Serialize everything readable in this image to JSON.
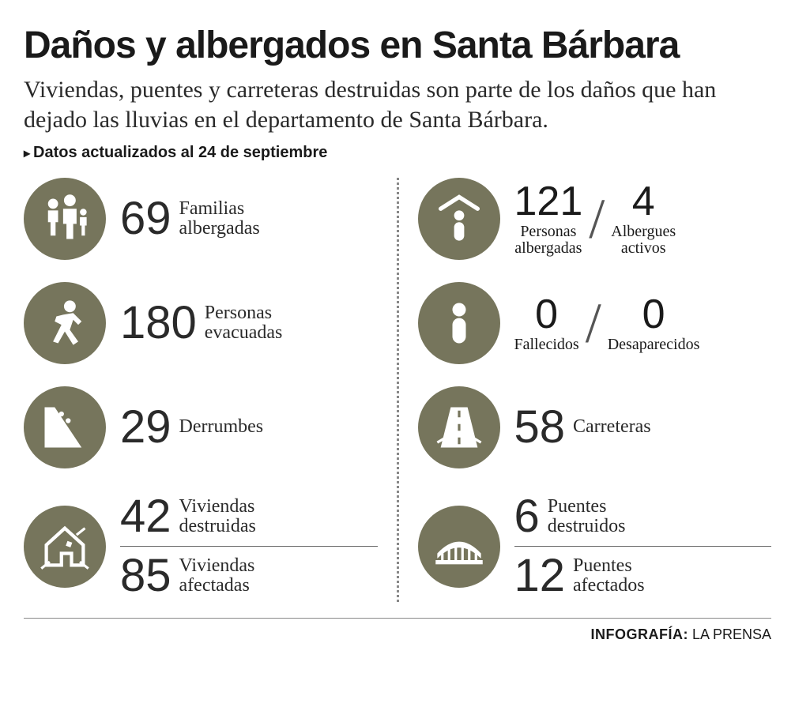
{
  "header": {
    "title": "Daños y albergados en Santa Bárbara",
    "subtitle": "Viviendas, puentes y carreteras destruidas son parte de los daños que han dejado las lluvias en el departamento de Santa Bárbara.",
    "date_note": "Datos actualizados al 24 de septiembre"
  },
  "colors": {
    "icon_bg": "#76755c",
    "icon_fg": "#ffffff",
    "text": "#2a2a2a"
  },
  "stats": {
    "familias_albergadas": {
      "value": "69",
      "label": "Familias\nalbergadas"
    },
    "personas_evacuadas": {
      "value": "180",
      "label": "Personas\nevacuadas"
    },
    "derrumbes": {
      "value": "29",
      "label": "Derrumbes"
    },
    "viviendas_destruidas": {
      "value": "42",
      "label": "Viviendas\ndestruidas"
    },
    "viviendas_afectadas": {
      "value": "85",
      "label": "Viviendas\nafectadas"
    },
    "personas_albergadas": {
      "value": "121",
      "label": "Personas\nalbergadas"
    },
    "albergues_activos": {
      "value": "4",
      "label": "Albergues\nactivos"
    },
    "fallecidos": {
      "value": "0",
      "label": "Fallecidos"
    },
    "desaparecidos": {
      "value": "0",
      "label": "Desaparecidos"
    },
    "carreteras": {
      "value": "58",
      "label": "Carreteras"
    },
    "puentes_destruidos": {
      "value": "6",
      "label": "Puentes\ndestruidos"
    },
    "puentes_afectados": {
      "value": "12",
      "label": "Puentes\nafectados"
    }
  },
  "credit": {
    "label": "INFOGRAFÍA:",
    "source": "LA PRENSA"
  }
}
